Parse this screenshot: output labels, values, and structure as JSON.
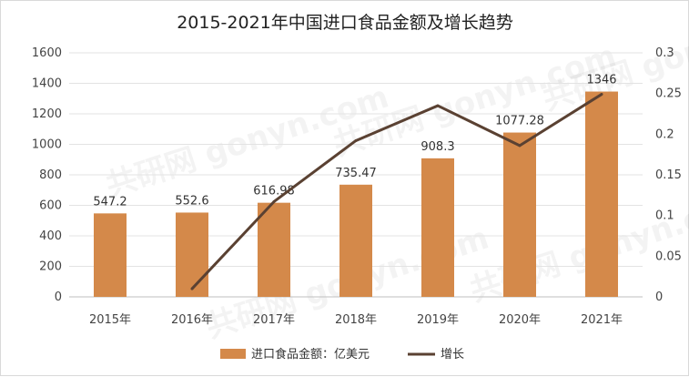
{
  "chart_data": {
    "type": "bar",
    "title": "2015-2021年中国进口食品金额及增长趋势",
    "categories": [
      "2015年",
      "2016年",
      "2017年",
      "2018年",
      "2019年",
      "2020年",
      "2021年"
    ],
    "series": [
      {
        "name": "进口食品金额：亿美元",
        "type": "bar",
        "axis": "left",
        "values": [
          547.2,
          552.6,
          616.98,
          735.47,
          908.3,
          1077.28,
          1346
        ],
        "labels": [
          "547.2",
          "552.6",
          "616.98",
          "735.47",
          "908.3",
          "1077.28",
          "1346"
        ],
        "color": "#D4894A"
      },
      {
        "name": "增长",
        "type": "line",
        "axis": "right",
        "values": [
          null,
          0.01,
          0.117,
          0.192,
          0.235,
          0.186,
          0.249
        ],
        "color": "#5A4132"
      }
    ],
    "y_left": {
      "min": 0,
      "max": 1600,
      "ticks": [
        "0",
        "200",
        "400",
        "600",
        "800",
        "1000",
        "1200",
        "1400",
        "1600"
      ]
    },
    "y_right": {
      "min": 0,
      "max": 0.3,
      "ticks": [
        "0",
        "0.05",
        "0.1",
        "0.15",
        "0.2",
        "0.25",
        "0.3"
      ]
    },
    "grid": true,
    "legend_position": "bottom",
    "watermark": "共研网 gonyn.com"
  }
}
